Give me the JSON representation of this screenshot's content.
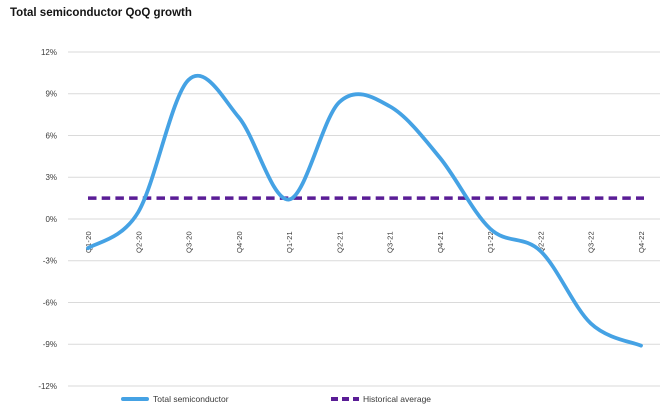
{
  "chart_data": {
    "type": "line",
    "title": "Total semiconductor QoQ growth",
    "categories": [
      "Q1-20",
      "Q2-20",
      "Q3-20",
      "Q4-20",
      "Q1-21",
      "Q2-21",
      "Q3-21",
      "Q4-21",
      "Q1-22",
      "Q2-22",
      "Q3-22",
      "Q4-22"
    ],
    "series": [
      {
        "name": "Total semiconductor",
        "type": "smooth-line",
        "color": "#45a2e4",
        "values": [
          -2.1,
          0.5,
          10,
          7.3,
          1.4,
          8.4,
          8.1,
          4.4,
          -0.7,
          -2.3,
          -7.5,
          -9.1
        ]
      },
      {
        "name": "Historical average",
        "type": "dashed-constant-line",
        "color": "#5a1d96",
        "constant_value": 1.5
      }
    ],
    "y_axis": {
      "ticks": [
        "12%",
        "9%",
        "6%",
        "3%",
        "0%",
        "-3%",
        "-6%",
        "-9%",
        "-12%"
      ],
      "tick_values": [
        12,
        9,
        6,
        3,
        0,
        -3,
        -6,
        -9,
        -12
      ],
      "min": -12,
      "max": 12,
      "unit": "%"
    },
    "x_axis": {
      "label_rotation_deg": -90,
      "labels_below_zero_line": true
    },
    "grid": true,
    "gridline_color": "#dadada",
    "axis_label_color": "#3a3a3a",
    "legend_position": "bottom"
  }
}
